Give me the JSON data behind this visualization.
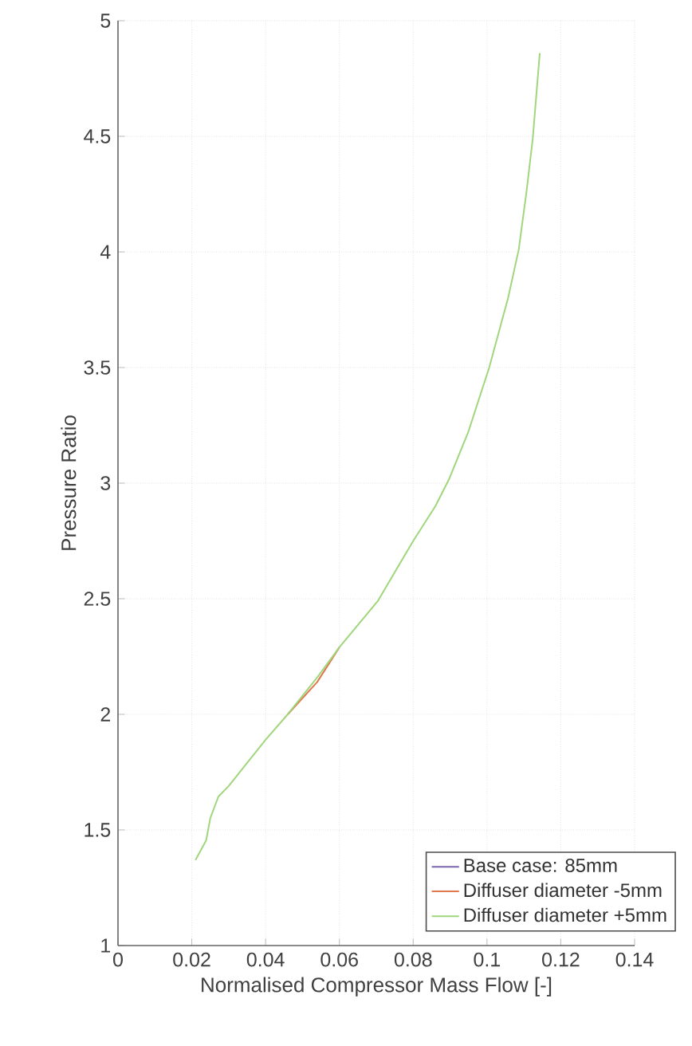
{
  "chart_data": {
    "type": "line",
    "xlabel": "Normalised Compressor Mass Flow [-]",
    "ylabel": "Pressure Ratio",
    "xlim": [
      0,
      0.14
    ],
    "ylim": [
      1,
      5
    ],
    "xticks": [
      0,
      0.02,
      0.04,
      0.06,
      0.08,
      0.1,
      0.12,
      0.14
    ],
    "yticks": [
      1,
      1.5,
      2,
      2.5,
      3,
      3.5,
      4,
      4.5,
      5
    ],
    "grid": true,
    "legend": "bottom right",
    "marker": "none",
    "line_style": "solid",
    "x": [
      0.021,
      0.0239,
      0.025,
      0.0272,
      0.03,
      0.04,
      0.046,
      0.054,
      0.06,
      0.0704,
      0.08,
      0.086,
      0.0898,
      0.0949,
      0.1006,
      0.1057,
      0.1086,
      0.1107,
      0.1124,
      0.1143
    ],
    "series": [
      {
        "name": "Base case: 85mm",
        "color": "#7b62b0",
        "values": [
          null,
          null,
          null,
          null,
          null,
          null,
          null,
          null,
          null,
          null,
          null,
          null,
          null,
          null,
          null,
          null,
          null,
          null,
          null,
          null
        ]
      },
      {
        "name": "Diffuser diameter -5mm",
        "color": "#e0784e",
        "values": [
          null,
          null,
          null,
          null,
          null,
          null,
          2.0,
          2.14,
          2.29,
          null,
          null,
          null,
          null,
          null,
          null,
          null,
          null,
          null,
          null,
          null
        ]
      },
      {
        "name": "Diffuser diameter +5mm",
        "color": "#a0d67c",
        "values": [
          1.37,
          1.455,
          1.55,
          1.644,
          1.69,
          1.89,
          2.0,
          2.16,
          2.29,
          2.49,
          2.75,
          2.9,
          3.02,
          3.22,
          3.5,
          3.8,
          4.01,
          4.26,
          4.49,
          4.86
        ]
      }
    ]
  }
}
